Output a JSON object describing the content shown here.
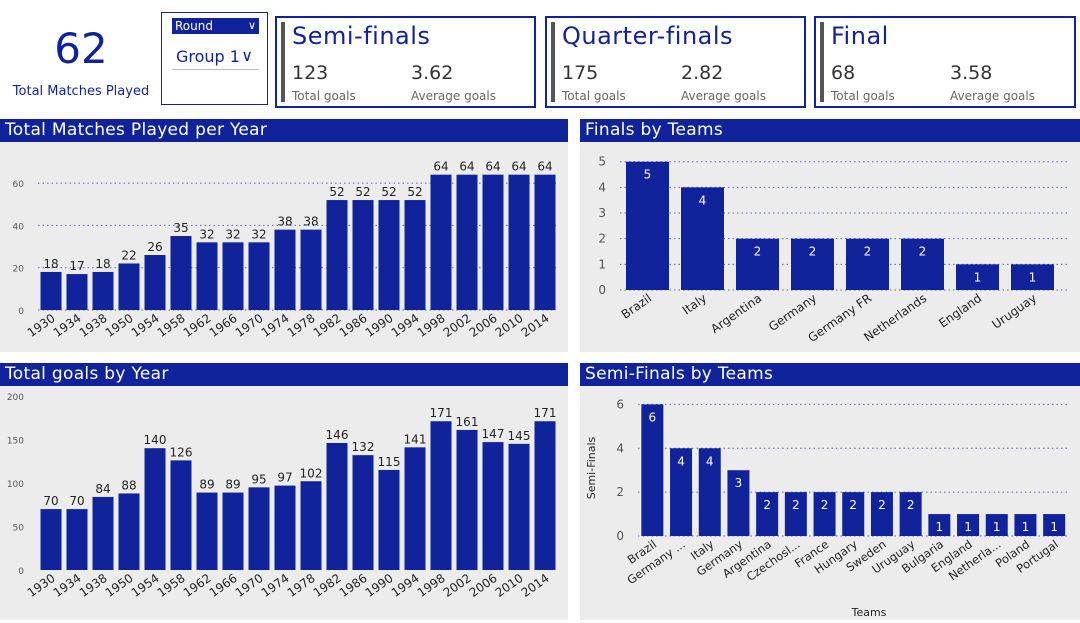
{
  "kpi": {
    "value": "62",
    "label": "Total Matches Played"
  },
  "slicer": {
    "header": "Round",
    "selected": "Group 1"
  },
  "cards": [
    {
      "title": "Semi-finals",
      "total_goals": "123",
      "total_goals_label": "Total goals",
      "avg_goals": "3.62",
      "avg_goals_label": "Average goals"
    },
    {
      "title": "Quarter-finals",
      "total_goals": "175",
      "total_goals_label": "Total goals",
      "avg_goals": "2.82",
      "avg_goals_label": "Average goals"
    },
    {
      "title": "Final",
      "total_goals": "68",
      "total_goals_label": "Total goals",
      "avg_goals": "3.58",
      "avg_goals_label": "Average goals"
    }
  ],
  "chart_data": [
    {
      "type": "bar",
      "title": "Total Matches Played per Year",
      "categories": [
        "1930",
        "1934",
        "1938",
        "1950",
        "1954",
        "1958",
        "1962",
        "1966",
        "1970",
        "1974",
        "1978",
        "1982",
        "1986",
        "1990",
        "1994",
        "1998",
        "2002",
        "2006",
        "2010",
        "2014"
      ],
      "values": [
        18,
        17,
        18,
        22,
        26,
        35,
        32,
        32,
        32,
        38,
        38,
        52,
        52,
        52,
        52,
        64,
        64,
        64,
        64,
        64
      ],
      "ylim": [
        0,
        70
      ],
      "yticks": [
        0,
        20,
        40,
        60
      ],
      "gridlines": "dotted",
      "xlabel": "",
      "ylabel": ""
    },
    {
      "type": "bar",
      "title": "Finals by Teams",
      "categories": [
        "Brazil",
        "Italy",
        "Argentina",
        "Germany",
        "Germany FR",
        "Netherlands",
        "England",
        "Uruguay"
      ],
      "values": [
        5,
        4,
        2,
        2,
        2,
        2,
        1,
        1
      ],
      "ylim": [
        0,
        5.3
      ],
      "yticks": [
        0,
        1,
        2,
        3,
        4,
        5
      ],
      "gridlines": "dotted",
      "xlabel": "",
      "ylabel": ""
    },
    {
      "type": "bar",
      "title": "Total goals by Year",
      "categories": [
        "1930",
        "1934",
        "1938",
        "1950",
        "1954",
        "1958",
        "1962",
        "1966",
        "1970",
        "1974",
        "1978",
        "1982",
        "1986",
        "1990",
        "1994",
        "1998",
        "2002",
        "2006",
        "2010",
        "2014"
      ],
      "values": [
        70,
        70,
        84,
        88,
        140,
        126,
        89,
        89,
        95,
        97,
        102,
        146,
        132,
        115,
        141,
        171,
        161,
        147,
        145,
        171
      ],
      "ylim": [
        0,
        200
      ],
      "yticks": [
        0,
        50,
        100,
        150,
        200
      ],
      "gridlines": "none",
      "xlabel": "",
      "ylabel": ""
    },
    {
      "type": "bar",
      "title": "Semi-Finals by Teams",
      "categories": [
        "Brazil",
        "Germany ...",
        "Italy",
        "Germany",
        "Argentina",
        "Czechosl...",
        "France",
        "Hungary",
        "Sweden",
        "Uruguay",
        "Bulgaria",
        "England",
        "Netherla...",
        "Poland",
        "Portugal"
      ],
      "values": [
        6,
        4,
        4,
        3,
        2,
        2,
        2,
        2,
        2,
        2,
        1,
        1,
        1,
        1,
        1
      ],
      "ylim": [
        0,
        6.2
      ],
      "yticks": [
        0,
        2,
        4,
        6
      ],
      "gridlines": "dotted",
      "xlabel": "Teams",
      "ylabel": "Semi-Finals"
    }
  ],
  "colors": {
    "bar": "#11239b",
    "title_bg": "#11239b",
    "panel_bg": "#ececec",
    "grid": "#2b3fb0"
  }
}
